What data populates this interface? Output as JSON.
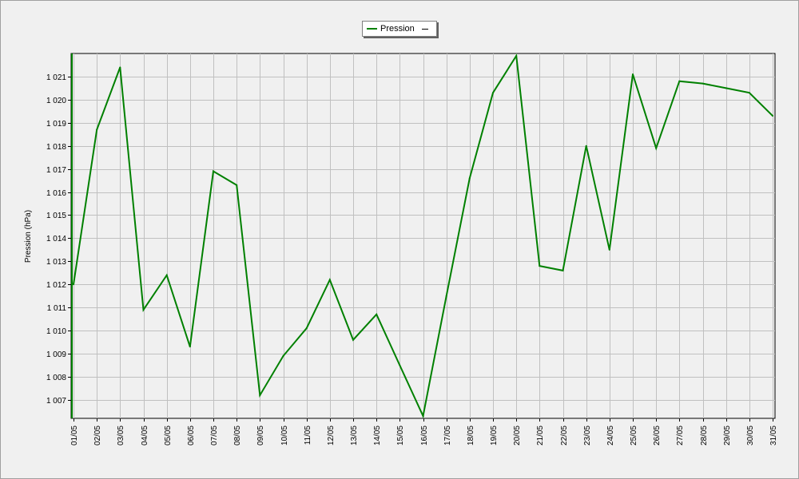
{
  "chart_data": {
    "type": "line",
    "legend_position": "top-center",
    "grid": true,
    "ylabel": "Pression (hPa)",
    "ylim": [
      1006.2,
      1022.0
    ],
    "y_ticks": [
      1007,
      1008,
      1009,
      1010,
      1011,
      1012,
      1013,
      1014,
      1015,
      1016,
      1017,
      1018,
      1019,
      1020,
      1021
    ],
    "y_tick_labels": [
      "1 007",
      "1 008",
      "1 009",
      "1 010",
      "1 011",
      "1 012",
      "1 013",
      "1 014",
      "1 015",
      "1 016",
      "1 017",
      "1 018",
      "1 019",
      "1 020",
      "1 021"
    ],
    "categories": [
      "01/05",
      "02/05",
      "03/05",
      "04/05",
      "05/05",
      "06/05",
      "07/05",
      "08/05",
      "09/05",
      "10/05",
      "11/05",
      "12/05",
      "13/05",
      "14/05",
      "15/05",
      "16/05",
      "17/05",
      "18/05",
      "19/05",
      "20/05",
      "21/05",
      "22/05",
      "23/05",
      "24/05",
      "25/05",
      "26/05",
      "27/05",
      "28/05",
      "29/05",
      "30/05",
      "31/05"
    ],
    "series": [
      {
        "name": "Pression",
        "color": "#008000",
        "values": [
          1012.0,
          1018.7,
          1021.4,
          1010.9,
          1012.4,
          1009.3,
          1016.9,
          1016.3,
          1007.2,
          1008.9,
          1010.1,
          1012.2,
          1009.6,
          1010.7,
          1008.5,
          1006.3,
          1011.5,
          1016.6,
          1020.3,
          1021.9,
          1012.8,
          1012.6,
          1018.0,
          1013.5,
          1021.1,
          1017.9,
          1020.8,
          1020.7,
          1020.5,
          1020.3,
          1019.3
        ]
      }
    ]
  },
  "legend": {
    "label": "Pression",
    "marker": "—"
  }
}
